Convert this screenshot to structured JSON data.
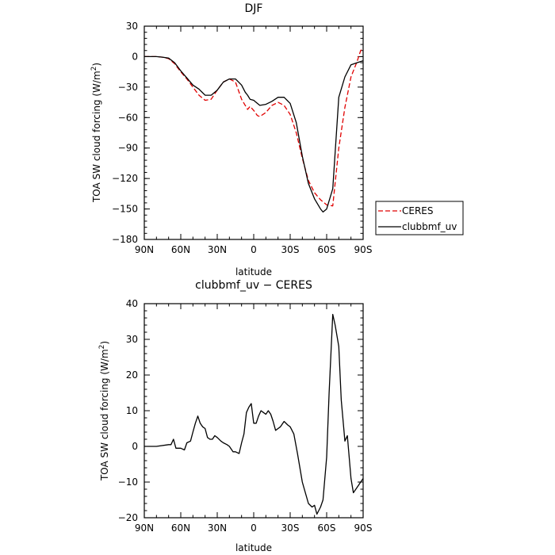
{
  "chart_data": [
    {
      "type": "line",
      "title": "DJF",
      "xlabel": "latitude",
      "ylabel_main": "TOA SW cloud forcing (W/m",
      "ylabel_sup": "2",
      "ylabel_close": ")",
      "xlim": [
        90,
        -90
      ],
      "ylim": [
        -180,
        30
      ],
      "x_tick_values": [
        90,
        60,
        30,
        0,
        -30,
        -60,
        -90
      ],
      "x_tick_labels": [
        "90N",
        "60N",
        "30N",
        "0",
        "30S",
        "60S",
        "90S"
      ],
      "y_tick_values": [
        30,
        0,
        -30,
        -60,
        -90,
        -120,
        -150,
        -180
      ],
      "y_tick_labels": [
        "30",
        "0",
        "−30",
        "−60",
        "−90",
        "−120",
        "−150",
        "−180"
      ],
      "legend": {
        "placement": "right",
        "entries": [
          "CERES",
          "clubbmf_uv"
        ]
      },
      "series": [
        {
          "name": "CERES",
          "color": "#e00000",
          "style": "dashed",
          "x": [
            90,
            80,
            75,
            70,
            65,
            60,
            55,
            50,
            45,
            40,
            35,
            30,
            25,
            20,
            15,
            10,
            7,
            5,
            3,
            0,
            -3,
            -5,
            -10,
            -15,
            -20,
            -25,
            -30,
            -35,
            -40,
            -45,
            -50,
            -55,
            -60,
            -65,
            -70,
            -75,
            -80,
            -85,
            -88,
            -90
          ],
          "values": [
            0,
            0,
            -0.5,
            -2,
            -7,
            -15,
            -22,
            -30,
            -38,
            -43,
            -42,
            -33,
            -25,
            -22,
            -25,
            -42,
            -48,
            -52,
            -49,
            -53,
            -58,
            -59,
            -55,
            -48,
            -45,
            -48,
            -57,
            -75,
            -100,
            -122,
            -134,
            -141,
            -146,
            -147,
            -90,
            -50,
            -20,
            -5,
            6,
            8
          ]
        },
        {
          "name": "clubbmf_uv",
          "color": "#000000",
          "style": "solid",
          "x": [
            90,
            80,
            75,
            70,
            65,
            60,
            55,
            50,
            45,
            40,
            35,
            30,
            25,
            20,
            15,
            10,
            7,
            5,
            3,
            0,
            -3,
            -5,
            -10,
            -15,
            -20,
            -25,
            -30,
            -35,
            -40,
            -45,
            -50,
            -55,
            -57,
            -60,
            -65,
            -70,
            -75,
            -80,
            -85,
            -90
          ],
          "values": [
            0,
            0,
            -0.5,
            -1.5,
            -6,
            -14,
            -21,
            -28,
            -32,
            -38,
            -38,
            -33,
            -25,
            -22,
            -22,
            -28,
            -35,
            -38,
            -42,
            -43,
            -46,
            -48,
            -47,
            -44,
            -40,
            -40,
            -46,
            -65,
            -98,
            -125,
            -140,
            -150,
            -153,
            -150,
            -130,
            -40,
            -20,
            -8,
            -6,
            -4
          ]
        }
      ]
    },
    {
      "type": "line",
      "title": "clubbmf_uv − CERES",
      "xlabel": "latitude",
      "ylabel_main": "TOA SW cloud forcing (W/m",
      "ylabel_sup": "2",
      "ylabel_close": ")",
      "xlim": [
        90,
        -90
      ],
      "ylim": [
        -20,
        40
      ],
      "x_tick_values": [
        90,
        60,
        30,
        0,
        -30,
        -60,
        -90
      ],
      "x_tick_labels": [
        "90N",
        "60N",
        "30N",
        "0",
        "30S",
        "60S",
        "90S"
      ],
      "y_tick_values": [
        40,
        30,
        20,
        10,
        0,
        -10,
        -20
      ],
      "y_tick_labels": [
        "40",
        "30",
        "20",
        "10",
        "0",
        "−10",
        "−20"
      ],
      "series": [
        {
          "name": "clubbmf_uv − CERES",
          "color": "#000000",
          "style": "solid",
          "x": [
            90,
            80,
            70,
            68,
            66,
            64,
            60,
            57,
            55,
            52,
            50,
            48,
            46,
            44,
            42,
            40,
            38,
            36,
            34,
            32,
            30,
            27,
            25,
            22,
            20,
            17,
            15,
            12,
            10,
            8,
            6,
            4,
            2,
            0,
            -2,
            -4,
            -6,
            -8,
            -10,
            -12,
            -14,
            -16,
            -18,
            -20,
            -22,
            -25,
            -28,
            -30,
            -33,
            -36,
            -40,
            -45,
            -48,
            -50,
            -52,
            -55,
            -57,
            -60,
            -62,
            -65,
            -67,
            -70,
            -72,
            -75,
            -77,
            -80,
            -82,
            -84,
            -86,
            -88,
            -90
          ],
          "values": [
            0,
            0,
            0.5,
            0.5,
            2,
            -0.5,
            -0.5,
            -1,
            1,
            1.5,
            4,
            6.5,
            8.5,
            6.5,
            5.5,
            5,
            2.5,
            2,
            2,
            3,
            2.5,
            1.5,
            1,
            0.5,
            0,
            -1.5,
            -1.5,
            -2,
            1,
            3.5,
            9.5,
            11,
            12,
            6.5,
            6.5,
            8.5,
            10,
            9.5,
            9,
            10,
            9,
            7,
            4.5,
            5,
            5.5,
            7,
            6,
            5.5,
            3.5,
            -2,
            -10,
            -16,
            -17,
            -16.5,
            -19,
            -17,
            -15,
            -3,
            15,
            37,
            34,
            28,
            13,
            1.5,
            3,
            -9,
            -13,
            -12,
            -11,
            -10,
            -9
          ]
        }
      ]
    }
  ]
}
